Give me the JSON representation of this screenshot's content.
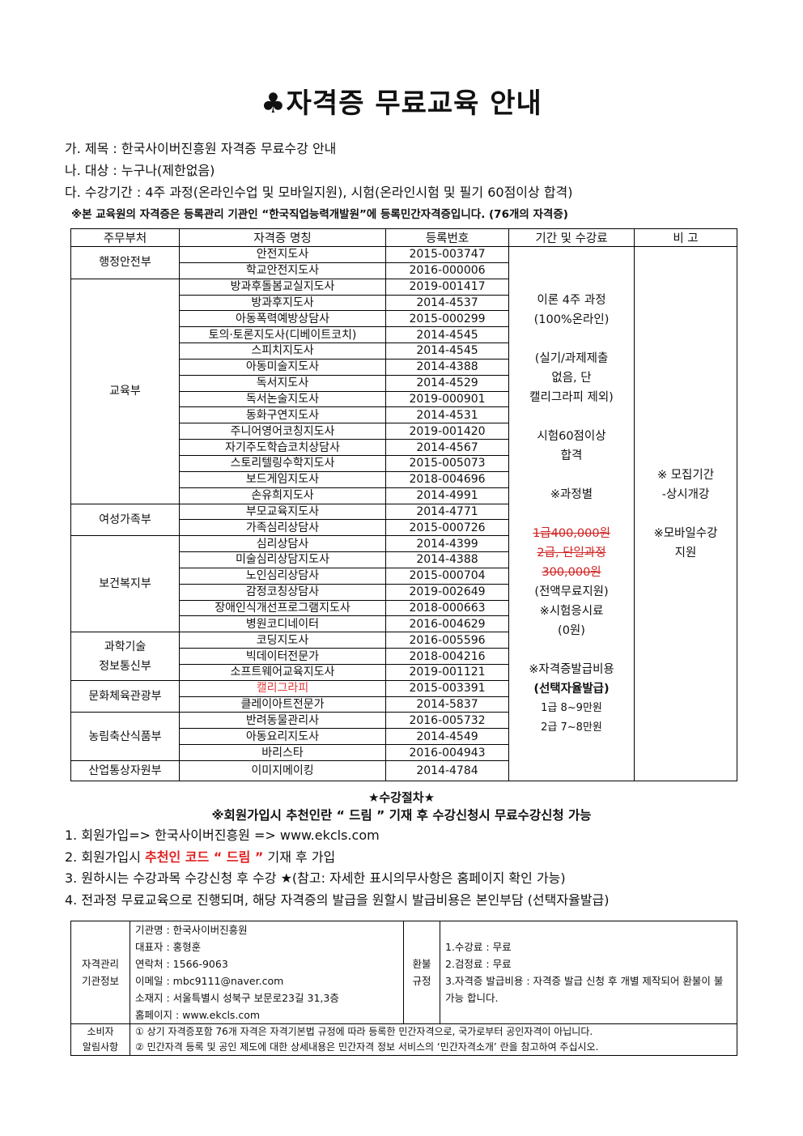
{
  "header": {
    "title": "♣자격증 무료교육 안내",
    "lines": [
      "가. 제목 : 한국사이버진흥원 자격증 무료수강 안내",
      "나. 대상 : 누구나(제한없음)",
      "다. 수강기간 : 4주 과정(온라인수업 및 모바일지원), 시험(온라인시험 및 필기 60점이상 합격)"
    ],
    "notice": "※본 교육원의 자격증은 등록관리 기관인 “한국직업능력개발원”에 등록민간자격증입니다. (76개의 자격증)"
  },
  "table": {
    "columns": [
      "주무부처",
      "자격증 명칭",
      "등록번호",
      "기간 및 수강료",
      "비 고"
    ],
    "groups": [
      {
        "ministry": [
          "행정안전부"
        ],
        "items": [
          {
            "name": "안전지도사",
            "reg": "2015-003747"
          },
          {
            "name": "학교안전지도사",
            "reg": "2016-000006"
          }
        ]
      },
      {
        "ministry": [
          "교육부"
        ],
        "items": [
          {
            "name": "방과후돌봄교실지도사",
            "reg": "2019-001417"
          },
          {
            "name": "방과후지도사",
            "reg": "2014-4537"
          },
          {
            "name": "아동폭력예방상담사",
            "reg": "2015-000299"
          },
          {
            "name": "토의·토론지도사(디베이트코치)",
            "reg": "2014-4545"
          },
          {
            "name": "스피치지도사",
            "reg": "2014-4545"
          },
          {
            "name": "아동미술지도사",
            "reg": "2014-4388"
          },
          {
            "name": "독서지도사",
            "reg": "2014-4529"
          },
          {
            "name": "독서논술지도사",
            "reg": "2019-000901"
          },
          {
            "name": "동화구연지도사",
            "reg": "2014-4531"
          },
          {
            "name": "주니어영어코칭지도사",
            "reg": "2019-001420"
          },
          {
            "name": "자기주도학습코치상담사",
            "reg": "2014-4567"
          },
          {
            "name": "스토리텔링수학지도사",
            "reg": "2015-005073"
          },
          {
            "name": "보드게임지도사",
            "reg": "2018-004696"
          },
          {
            "name": "손유희지도사",
            "reg": "2014-4991"
          }
        ]
      },
      {
        "ministry": [
          "여성가족부"
        ],
        "items": [
          {
            "name": "부모교육지도사",
            "reg": "2014-4771"
          },
          {
            "name": "가족심리상담사",
            "reg": "2015-000726"
          }
        ]
      },
      {
        "ministry": [
          "보건복지부"
        ],
        "items": [
          {
            "name": "심리상담사",
            "reg": "2014-4399"
          },
          {
            "name": "미술심리상담지도사",
            "reg": "2014-4388"
          },
          {
            "name": "노인심리상담사",
            "reg": "2015-000704"
          },
          {
            "name": "감정코칭상담사",
            "reg": "2019-002649"
          },
          {
            "name": "장애인식개선프로그램지도사",
            "reg": "2018-000663"
          },
          {
            "name": "병원코디네이터",
            "reg": "2016-004629"
          }
        ]
      },
      {
        "ministry": [
          "과학기술",
          "정보통신부"
        ],
        "items": [
          {
            "name": "코딩지도사",
            "reg": "2016-005596"
          },
          {
            "name": "빅데이터전문가",
            "reg": "2018-004216"
          },
          {
            "name": "소프트웨어교육지도사",
            "reg": "2019-001121"
          }
        ]
      },
      {
        "ministry": [
          "문화체육관광부"
        ],
        "items": [
          {
            "name": "캘리그라피",
            "reg": "2015-003391",
            "color": "#e03c3c"
          },
          {
            "name": "클레이아트전문가",
            "reg": "2014-5837"
          }
        ]
      },
      {
        "ministry": [
          "농림축산식품부"
        ],
        "items": [
          {
            "name": "반려동물관리사",
            "reg": "2016-005732"
          },
          {
            "name": "아동요리지도사",
            "reg": "2014-4549"
          },
          {
            "name": "바리스타",
            "reg": "2016-004943"
          }
        ]
      },
      {
        "ministry": [
          "산업통상자원부"
        ],
        "items": [
          {
            "name": "이미지메이킹",
            "reg": "2014-4784"
          }
        ]
      }
    ],
    "fee": [
      {
        "lines": [
          "이론 4주 과정",
          "(100%온라인)"
        ]
      },
      {
        "lines": [
          "(실기/과제제출",
          "없음, 단",
          "캘리그라피 제외)"
        ]
      },
      {
        "lines": [
          "시험60점이상",
          "합격"
        ]
      },
      {
        "lines": [
          "※과정별"
        ]
      },
      {
        "lines": [
          "1급400,000원",
          "2급, 단일과정",
          "300,000원"
        ],
        "style": "strike"
      },
      {
        "lines": [
          "(전액무료지원)",
          "※시험응시료",
          "(0원)"
        ]
      },
      {
        "lines": [
          "※자격증발급비용"
        ]
      },
      {
        "lines": [
          "(선택자율발급)"
        ],
        "style": "bold"
      },
      {
        "lines": [
          "1급 8~9만원",
          "2급 7~8만원"
        ],
        "style": "small"
      }
    ],
    "remark": [
      {
        "lines": [
          "※ 모집기간",
          "-상시개강"
        ]
      },
      {
        "lines": [
          "※모바일수강",
          "지원"
        ]
      }
    ]
  },
  "procedure": {
    "title": "★수강절차★",
    "subtitle": "※회원가입시 추천인란 “ 드림 ” 기재 후 수강신청시 무료수강신청 가능",
    "items": [
      [
        {
          "text": "1. 회원가입=> 한국사이버진흥원 => www.ekcls.com"
        }
      ],
      [
        {
          "text": "2. 회원가입시 "
        },
        {
          "text": "추천인 코드 “ 드림 ”",
          "color": "#e02020"
        },
        {
          "text": " 기재 후 가입"
        }
      ],
      [
        {
          "text": "3. 원하시는 수강과목 수강신청 후 수강 ★(참고: 자세한 표시의무사항은 홈페이지 확인 가능)"
        }
      ],
      [
        {
          "text": "4. 전과정 무료교육으로 진행되며, 해당 자격증의 발급을 원할시 발급비용은 본인부담 (선택자율발급)"
        }
      ]
    ]
  },
  "info": {
    "org_label": [
      "자격관리",
      "기관정보"
    ],
    "org": [
      "기관명 : 한국사이버진흥원",
      "대표자 : 홍형훈",
      "연락처 : 1566-9063",
      "이메일 : mbc9111@naver.com",
      "소재지 : 서울특별시 성북구 보문로23길 31,3층",
      "홈페이지 : www.ekcls.com"
    ],
    "refund_label": [
      "환불",
      "규정"
    ],
    "refund": [
      "1.수강료 : 무료",
      "2.검정료 : 무료",
      "3.자격증 발급비용 : 자격증 발급 신청 후 개별 제작되어 환불이 불가능 합니다."
    ],
    "notice_label": [
      "소비자",
      "알림사항"
    ],
    "notices": [
      "① 상기 자격증포함 76개 자격은 자격기본법 규정에 따라 등록한 민간자격으로, 국가로부터 공인자격이 아닙니다.",
      "② 민간자격 등록 및 공인 제도에 대한 상세내용은 민간자격 정보 서비스의 ‘민간자격소개’ 란을 참고하여 주십시오."
    ]
  }
}
